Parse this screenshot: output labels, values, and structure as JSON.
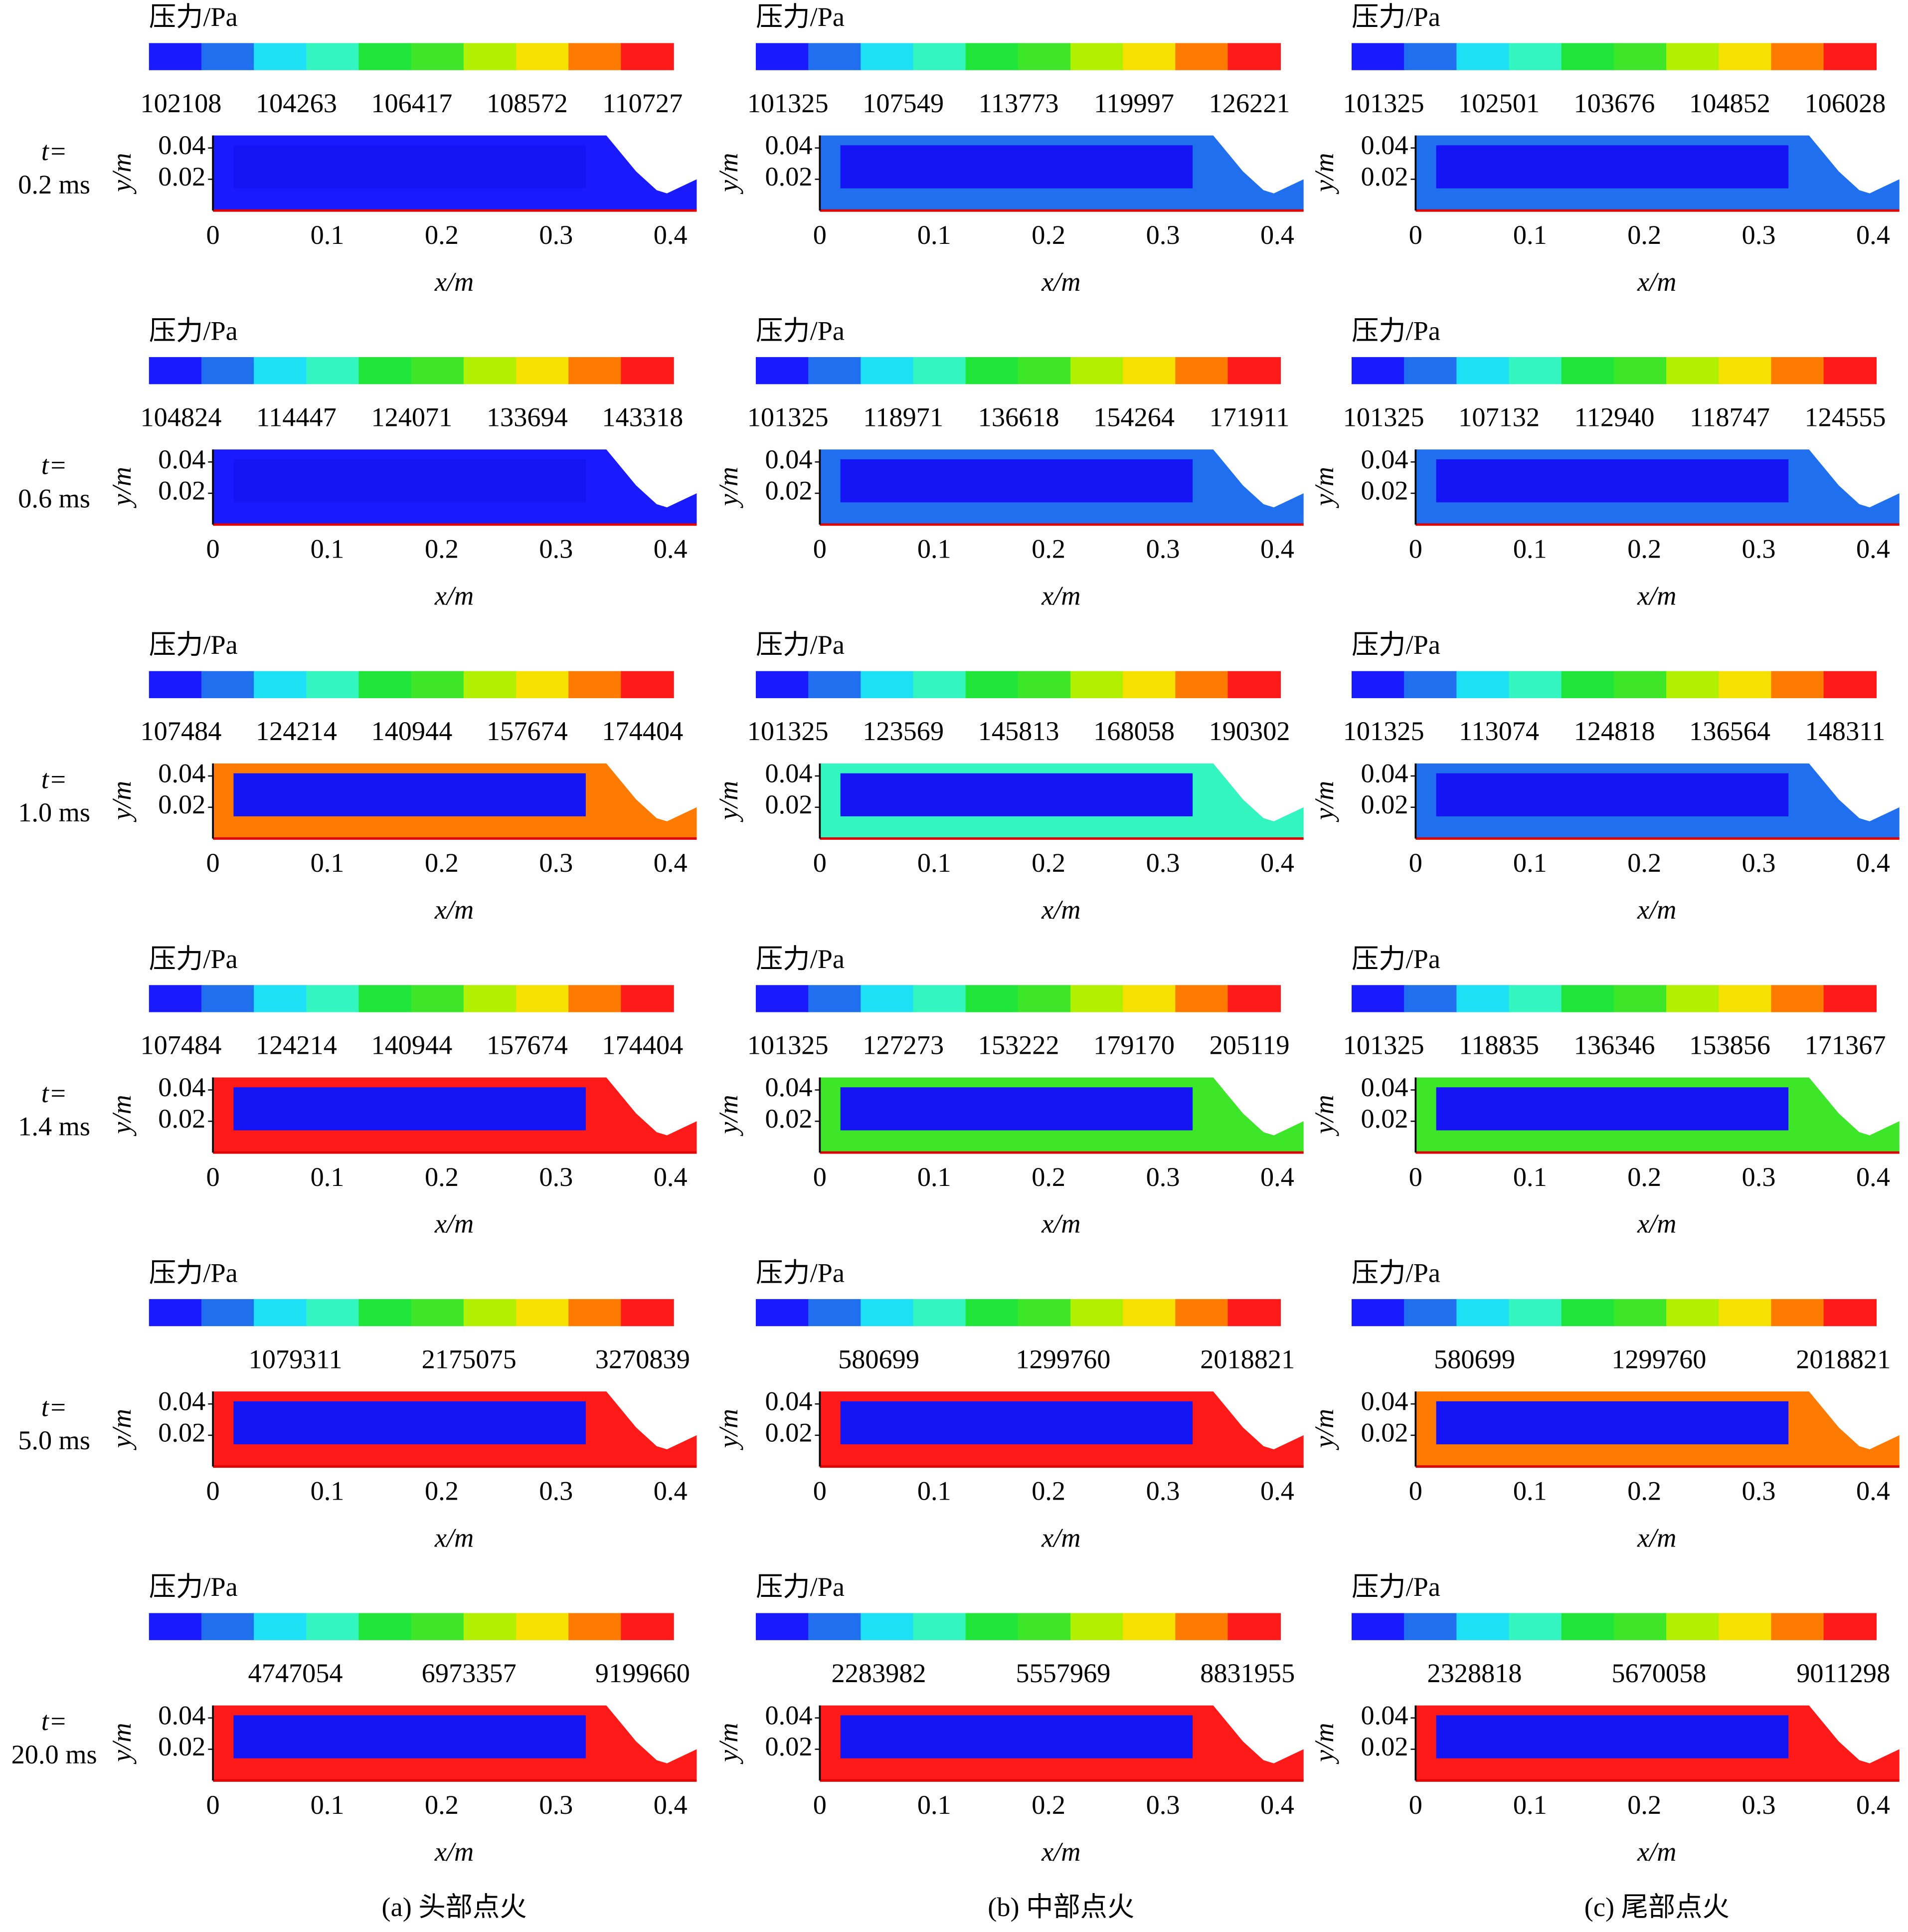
{
  "time_prefix": "t=",
  "time_labels": [
    "0.2 ms",
    "0.6 ms",
    "1.0 ms",
    "1.4 ms",
    "5.0 ms",
    "20.0 ms"
  ],
  "captions": [
    "(a) 头部点火",
    "(b) 中部点火",
    "(c) 尾部点火"
  ],
  "chart_data": [
    {
      "type": "contour",
      "colorbar_label": "压力/Pa",
      "colorbar_ticks": [
        102108,
        104263,
        106417,
        108572,
        110727
      ],
      "colorbar_lim": [
        101510,
        111302
      ],
      "field_color": "#1a1aff"
    },
    {
      "type": "contour",
      "colorbar_label": "压力/Pa",
      "colorbar_ticks": [
        101325,
        107549,
        113773,
        119997,
        126221
      ],
      "colorbar_lim": [
        99599,
        127881
      ],
      "field_color": "#1f6fef"
    },
    {
      "type": "contour",
      "colorbar_label": "压力/Pa",
      "colorbar_ticks": [
        101325,
        102501,
        103676,
        104852,
        106028
      ],
      "colorbar_lim": [
        100999,
        106342
      ],
      "field_color": "#1f6fef"
    },
    {
      "type": "contour",
      "colorbar_label": "压力/Pa",
      "colorbar_ticks": [
        104824,
        114447,
        124071,
        133694,
        143318
      ],
      "colorbar_lim": [
        102155,
        145884
      ],
      "field_color": "#1a1aff"
    },
    {
      "type": "contour",
      "colorbar_label": "压力/Pa",
      "colorbar_ticks": [
        101325,
        118971,
        136618,
        154264,
        171911
      ],
      "colorbar_lim": [
        96431,
        176617
      ],
      "field_color": "#1f6fef"
    },
    {
      "type": "contour",
      "colorbar_label": "压力/Pa",
      "colorbar_ticks": [
        101325,
        107132,
        112940,
        118747,
        124555
      ],
      "colorbar_lim": [
        99714,
        126104
      ],
      "field_color": "#1f6fef"
    },
    {
      "type": "contour",
      "colorbar_label": "压力/Pa",
      "colorbar_ticks": [
        107484,
        124214,
        140944,
        157674,
        174404
      ],
      "colorbar_lim": [
        102844,
        178865
      ],
      "field_color": "#ff7a00"
    },
    {
      "type": "contour",
      "colorbar_label": "压力/Pa",
      "colorbar_ticks": [
        101325,
        123569,
        145813,
        168058,
        190302
      ],
      "colorbar_lim": [
        95156,
        196234
      ],
      "field_color": "#33f5c0"
    },
    {
      "type": "contour",
      "colorbar_label": "压力/Pa",
      "colorbar_ticks": [
        101325,
        113074,
        124818,
        136564,
        148311
      ],
      "colorbar_lim": [
        98067,
        151443
      ],
      "field_color": "#1f6fef"
    },
    {
      "type": "contour",
      "colorbar_label": "压力/Pa",
      "colorbar_ticks": [
        107484,
        124214,
        140944,
        157674,
        174404
      ],
      "colorbar_lim": [
        102844,
        178865
      ],
      "field_color": "#ff1a1a"
    },
    {
      "type": "contour",
      "colorbar_label": "压力/Pa",
      "colorbar_ticks": [
        101325,
        127273,
        153222,
        179170,
        205119
      ],
      "colorbar_lim": [
        94129,
        212039
      ],
      "field_color": "#3ee629"
    },
    {
      "type": "contour",
      "colorbar_label": "压力/Pa",
      "colorbar_ticks": [
        101325,
        118835,
        136346,
        153856,
        171367
      ],
      "colorbar_lim": [
        96469,
        176036
      ],
      "field_color": "#3ee629"
    },
    {
      "type": "contour",
      "colorbar_label": "压力/Pa",
      "colorbar_ticks": [
        1079311,
        2175075,
        3270839
      ],
      "colorbar_lim": [
        154501,
        3465123
      ],
      "field_color": "#ff1a1a"
    },
    {
      "type": "contour",
      "colorbar_label": "压力/Pa",
      "colorbar_ticks": [
        580699,
        1299760,
        2018821
      ],
      "colorbar_lim": [
        101325,
        2146314
      ],
      "field_color": "#ff1a1a"
    },
    {
      "type": "contour",
      "colorbar_label": "压力/Pa",
      "colorbar_ticks": [
        580699,
        1299760,
        2018821
      ],
      "colorbar_lim": [
        101325,
        2146314
      ],
      "field_color": "#ff7a00"
    },
    {
      "type": "contour",
      "colorbar_label": "压力/Pa",
      "colorbar_ticks": [
        4747054,
        6973357,
        9199660
      ],
      "colorbar_lim": [
        2868133,
        9594394
      ],
      "field_color": "#ff1a1a"
    },
    {
      "type": "contour",
      "colorbar_label": "压力/Pa",
      "colorbar_ticks": [
        2283982,
        5557969,
        8831955
      ],
      "colorbar_lim": [
        101325,
        9412453
      ],
      "field_color": "#ff1a1a"
    },
    {
      "type": "contour",
      "colorbar_label": "压力/Pa",
      "colorbar_ticks": [
        2328818,
        5670058,
        9011298
      ],
      "colorbar_lim": [
        101325,
        9603704
      ],
      "field_color": "#ff1a1a"
    }
  ],
  "axes": {
    "xlabel": "x/m",
    "ylabel": "y/m",
    "xticks": [
      0,
      0.1,
      0.2,
      0.3,
      0.4
    ],
    "yticks": [
      0.02,
      0.04
    ],
    "xlim": [
      0,
      0.423
    ],
    "ylim": [
      0,
      0.048
    ],
    "colormap": [
      "#1a1aff",
      "#1f6fef",
      "#1ee0f5",
      "#33f5c0",
      "#1fe53a",
      "#3ee629",
      "#b0f000",
      "#f5e000",
      "#ff7a00",
      "#ff1a1a"
    ],
    "grain_color": "#1414f5"
  }
}
